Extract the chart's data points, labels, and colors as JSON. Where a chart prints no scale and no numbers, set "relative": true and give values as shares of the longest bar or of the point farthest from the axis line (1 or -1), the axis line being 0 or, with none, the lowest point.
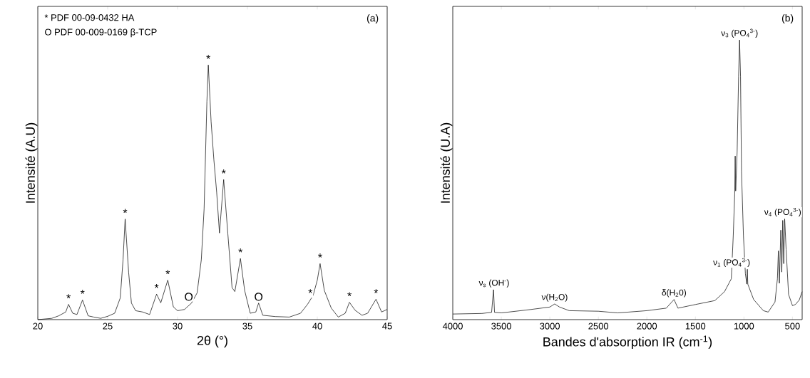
{
  "chart_data": [
    {
      "type": "line",
      "xlabel": "2θ (°)",
      "ylabel": "Intensité (A.U)",
      "relative": true,
      "xlim": [
        20,
        45
      ],
      "xticks": [
        20,
        25,
        30,
        35,
        40,
        45
      ],
      "marker": "none",
      "line_style": "solid",
      "series": [
        {
          "color": "#000000",
          "x": [
            20.0,
            21.0,
            21.5,
            22.0,
            22.2,
            22.5,
            22.8,
            23.2,
            23.6,
            24.0,
            24.5,
            25.0,
            25.5,
            25.9,
            26.1,
            26.25,
            26.5,
            26.7,
            27.0,
            27.5,
            28.0,
            28.5,
            28.8,
            29.3,
            29.7,
            30.0,
            30.5,
            31.0,
            31.4,
            31.7,
            31.9,
            32.1,
            32.2,
            32.4,
            32.6,
            32.8,
            33.0,
            33.3,
            33.6,
            33.9,
            34.1,
            34.5,
            34.8,
            35.2,
            35.6,
            35.8,
            36.1,
            37.0,
            38.0,
            38.8,
            39.3,
            39.7,
            40.0,
            40.2,
            40.5,
            41.0,
            41.5,
            42.0,
            42.3,
            42.7,
            43.2,
            43.6,
            44.2,
            44.6,
            45.0
          ],
          "values": [
            0.0,
            0.005,
            0.015,
            0.03,
            0.06,
            0.025,
            0.02,
            0.077,
            0.015,
            0.01,
            0.005,
            0.013,
            0.025,
            0.085,
            0.235,
            0.395,
            0.185,
            0.065,
            0.035,
            0.03,
            0.02,
            0.1,
            0.066,
            0.155,
            0.05,
            0.035,
            0.04,
            0.065,
            0.105,
            0.235,
            0.435,
            0.857,
            1.0,
            0.778,
            0.627,
            0.5,
            0.34,
            0.55,
            0.336,
            0.126,
            0.11,
            0.24,
            0.115,
            0.025,
            0.03,
            0.065,
            0.017,
            0.012,
            0.01,
            0.025,
            0.06,
            0.095,
            0.155,
            0.22,
            0.115,
            0.045,
            0.01,
            0.025,
            0.068,
            0.037,
            0.017,
            0.025,
            0.08,
            0.03,
            0.04
          ]
        }
      ],
      "annotations": [
        "* PDF 00-09-0432    HA",
        "O PDF 00-009-0169  β-TCP",
        "(a)",
        {
          "text": "*",
          "x": 22.2,
          "y": 0.06
        },
        {
          "text": "*",
          "x": 23.2,
          "y": 0.077
        },
        {
          "text": "*",
          "x": 26.25,
          "y": 0.395
        },
        {
          "text": "*",
          "x": 28.5,
          "y": 0.1
        },
        {
          "text": "*",
          "x": 29.3,
          "y": 0.155
        },
        {
          "text": "O",
          "x": 30.8,
          "y": 0.065
        },
        {
          "text": "*",
          "x": 32.2,
          "y": 1.0
        },
        {
          "text": "*",
          "x": 33.3,
          "y": 0.55
        },
        {
          "text": "*",
          "x": 34.5,
          "y": 0.24
        },
        {
          "text": "O",
          "x": 35.8,
          "y": 0.065
        },
        {
          "text": "*",
          "x": 39.5,
          "y": 0.08
        },
        {
          "text": "*",
          "x": 40.2,
          "y": 0.22
        },
        {
          "text": "*",
          "x": 42.3,
          "y": 0.068
        },
        {
          "text": "*",
          "x": 44.2,
          "y": 0.08
        }
      ]
    },
    {
      "type": "line",
      "xlabel": "Bandes d'absorption IR (cm$^{-1}$)",
      "ylabel": "Intensité (U.A)",
      "relative": true,
      "xlim": [
        4000,
        400
      ],
      "xticks": [
        4000,
        3500,
        3000,
        2500,
        2000,
        1500,
        1000,
        500
      ],
      "marker": "none",
      "line_style": "solid",
      "series": [
        {
          "color": "#000000",
          "x": [
            4000,
            3700,
            3600,
            3580,
            3570,
            3500,
            3200,
            3000,
            2950,
            2900,
            2800,
            2500,
            2300,
            2000,
            1800,
            1720,
            1680,
            1500,
            1300,
            1200,
            1130,
            1110,
            1095,
            1090,
            1085,
            1070,
            1055,
            1045,
            1035,
            1025,
            1005,
            985,
            970,
            965,
            960,
            900,
            800,
            750,
            680,
            655,
            645,
            635,
            620,
            610,
            600,
            590,
            580,
            565,
            540,
            500,
            470,
            430,
            400
          ],
          "values": [
            0.02,
            0.022,
            0.026,
            0.107,
            0.026,
            0.024,
            0.036,
            0.045,
            0.056,
            0.045,
            0.032,
            0.03,
            0.024,
            0.032,
            0.041,
            0.072,
            0.041,
            0.054,
            0.068,
            0.1,
            0.146,
            0.3,
            0.45,
            0.585,
            0.46,
            0.6,
            0.87,
            1.0,
            0.87,
            0.53,
            0.3,
            0.164,
            0.127,
            0.18,
            0.127,
            0.072,
            0.032,
            0.027,
            0.063,
            0.146,
            0.246,
            0.13,
            0.32,
            0.17,
            0.355,
            0.2,
            0.36,
            0.25,
            0.09,
            0.05,
            0.054,
            0.07,
            0.1
          ]
        }
      ],
      "annotations": [
        "(b)",
        {
          "text": "ν$_{s}$ (OH$^{-}$)",
          "x": 3574,
          "y": 0.107
        },
        {
          "text": "ν(H$_{2}$O)",
          "x": 2950,
          "y": 0.056
        },
        {
          "text": "δ(H$_{2}$0)",
          "x": 1720,
          "y": 0.072
        },
        {
          "text": "ν$_{3}$ (PO$_{4}$$^{3-}$)",
          "x": 1045,
          "y": 1.0
        },
        {
          "text": "ν$_{1}$ (PO$_{4}$$^{3-}$)",
          "x": 965,
          "y": 0.18
        },
        {
          "text": "ν$_{4}$ (PO$_{4}$$^{3-}$)",
          "x": 600,
          "y": 0.36
        }
      ]
    }
  ]
}
